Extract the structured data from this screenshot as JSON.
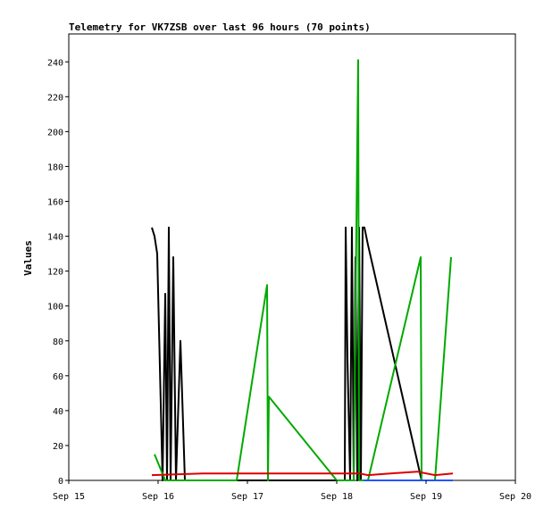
{
  "chart_data": {
    "type": "line",
    "title": "Telemetry for VK7ZSB over last 96 hours (70 points)",
    "xlabel": "",
    "ylabel": "Values",
    "x_ticks": [
      "Sep 15",
      "Sep 16",
      "Sep 17",
      "Sep 18",
      "Sep 19",
      "Sep 20"
    ],
    "y_ticks": [
      0,
      20,
      40,
      60,
      80,
      100,
      120,
      140,
      160,
      180,
      200,
      220,
      240
    ],
    "xlim": [
      0,
      5
    ],
    "ylim": [
      0,
      256
    ],
    "grid": false,
    "legend": "none",
    "series": [
      {
        "color": "#000000",
        "x": [
          0.93,
          0.96,
          0.99,
          1.05,
          1.08,
          1.1,
          1.12,
          1.14,
          1.17,
          1.2,
          1.25,
          1.3,
          3.09,
          3.1,
          3.12,
          3.15,
          3.17,
          3.19,
          3.21,
          3.23,
          3.25,
          3.27,
          3.29,
          3.31,
          3.33,
          3.35,
          3.95,
          4.3
        ],
        "y": [
          145,
          140,
          130,
          0,
          107,
          0,
          145,
          0,
          128,
          0,
          80,
          0,
          0,
          145,
          70,
          0,
          145,
          0,
          128,
          0,
          145,
          0,
          145,
          145,
          140,
          135,
          0,
          0
        ]
      },
      {
        "color": "#00aa00",
        "x": [
          0.96,
          1.08,
          1.88,
          2.22,
          2.23,
          2.24,
          3.0,
          3.06,
          3.07,
          3.09,
          3.19,
          3.24,
          3.25,
          3.35,
          3.94,
          3.95,
          4.05,
          4.1,
          4.28
        ],
        "y": [
          15,
          0,
          0,
          112,
          0,
          48,
          0,
          0,
          0,
          0,
          0,
          241,
          0,
          0,
          128,
          0,
          0,
          0,
          128
        ]
      },
      {
        "color": "#dd0000",
        "x": [
          0.93,
          1.5,
          2.0,
          2.5,
          3.0,
          3.25,
          3.35,
          3.6,
          3.9,
          4.1,
          4.3
        ],
        "y": [
          3,
          4,
          4,
          4,
          4,
          4,
          3,
          4,
          5,
          3,
          4
        ]
      },
      {
        "color": "#2255ff",
        "x": [
          3.3,
          3.7,
          4.3
        ],
        "y": [
          0,
          0,
          0
        ]
      }
    ]
  }
}
